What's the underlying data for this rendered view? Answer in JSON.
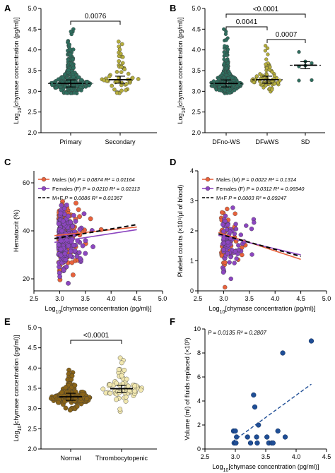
{
  "figure": {
    "panel_letters": [
      "A",
      "B",
      "C",
      "D",
      "E",
      "F"
    ],
    "palette": {
      "teal": "#2e6e5e",
      "olive": "#b5ad3c",
      "orange": "#e8623c",
      "purple": "#8c46c0",
      "brown": "#8a6418",
      "cream": "#f2e8b0",
      "blue": "#1f4e96"
    }
  },
  "chart_data": [
    {
      "panel": "A",
      "type": "scatter",
      "subtype": "dot-strip",
      "ylabel": "Log10[chymase concentration (pg/ml)]",
      "ylim": [
        2.0,
        5.0
      ],
      "yticks": [
        "2.0",
        "2.5",
        "3.0",
        "3.5",
        "4.0",
        "4.5",
        "5.0"
      ],
      "categories": [
        "Primary",
        "Secondary"
      ],
      "group_means": [
        3.19,
        3.28
      ],
      "group_ranges": [
        [
          2.95,
          4.5
        ],
        [
          2.95,
          4.2
        ]
      ],
      "group_counts": [
        260,
        55
      ],
      "group_colors": [
        "#2e6e5e",
        "#b5ad3c"
      ],
      "reference_line": 3.19,
      "brackets": [
        {
          "from": 0,
          "to": 1,
          "label": "0.0076"
        }
      ]
    },
    {
      "panel": "B",
      "type": "scatter",
      "subtype": "dot-strip",
      "ylabel": "Log10[chymase concentration (pg/ml)]",
      "ylim": [
        2.0,
        5.0
      ],
      "yticks": [
        "2.0",
        "2.5",
        "3.0",
        "3.5",
        "4.0",
        "4.5",
        "5.0"
      ],
      "categories": [
        "DFno-WS",
        "DFwWS",
        "SD"
      ],
      "group_means": [
        3.19,
        3.28,
        3.63
      ],
      "group_ranges": [
        [
          2.95,
          4.5
        ],
        [
          2.95,
          4.1
        ],
        [
          3.25,
          3.95
        ]
      ],
      "group_counts": [
        230,
        80,
        7
      ],
      "group_colors": [
        "#2e6e5e",
        "#b5ad3c",
        "#2e6e5e"
      ],
      "sd_points": [
        3.95,
        3.72,
        3.68,
        3.6,
        3.62,
        3.27,
        3.26
      ],
      "brackets": [
        {
          "from": 0,
          "to": 2,
          "label": "<0.0001"
        },
        {
          "from": 0,
          "to": 1,
          "label": "0.0041"
        },
        {
          "from": 1,
          "to": 2,
          "label": "0.0007"
        }
      ]
    },
    {
      "panel": "C",
      "type": "scatter",
      "xlabel": "Log10[chymase concentration (pg/ml)]",
      "ylabel": "Hematocrit (%)",
      "xlim": [
        2.5,
        5.0
      ],
      "ylim": [
        15,
        65
      ],
      "xticks": [
        "2.5",
        "3.0",
        "3.5",
        "4.0",
        "4.5",
        "5.0"
      ],
      "yticks": [
        "20",
        "40",
        "60"
      ],
      "series": [
        {
          "name": "Males (M)",
          "stats": "P = 0.0874 R² = 0.01164",
          "color": "#e8623c",
          "fit": [
            [
              2.9,
              38.0
            ],
            [
              4.5,
              41.6
            ]
          ],
          "line": "solid"
        },
        {
          "name": "Females (F)",
          "stats": "P = 0.0210 R² = 0.02113",
          "color": "#8c46c0",
          "fit": [
            [
              2.9,
              35.2
            ],
            [
              4.5,
              40.5
            ]
          ],
          "line": "solid"
        },
        {
          "name": "M+F",
          "stats": "P = 0.0086 R² = 0.01367",
          "color": "#000000",
          "fit": [
            [
              2.9,
              36.8
            ],
            [
              4.5,
              42.6
            ]
          ],
          "line": "dashed"
        }
      ]
    },
    {
      "panel": "D",
      "type": "scatter",
      "xlabel": "Log10[chymase concentration (pg/ml)]",
      "ylabel": "Platelet counts (×10⁵/μl of blood)",
      "xlim": [
        2.5,
        5.0
      ],
      "ylim": [
        0,
        4
      ],
      "xticks": [
        "2.5",
        "3.0",
        "3.5",
        "4.0",
        "4.5",
        "5.0"
      ],
      "yticks": [
        "0",
        "1",
        "2",
        "3",
        "4"
      ],
      "series": [
        {
          "name": "Males (M)",
          "stats": "P = 0.0022 R² = 0.1314",
          "color": "#e8623c",
          "fit": [
            [
              2.9,
              1.95
            ],
            [
              4.5,
              1.05
            ]
          ],
          "line": "solid"
        },
        {
          "name": "Females (F)",
          "stats": "P = 0.0312 R² = 0.06940",
          "color": "#8c46c0",
          "fit": [
            [
              2.9,
              1.85
            ],
            [
              4.5,
              1.2
            ]
          ],
          "line": "solid"
        },
        {
          "name": "M+F",
          "stats": "P = 0.0003 R² = 0.09247",
          "color": "#000000",
          "fit": [
            [
              2.9,
              1.9
            ],
            [
              4.5,
              1.15
            ]
          ],
          "line": "dashed"
        }
      ]
    },
    {
      "panel": "E",
      "type": "scatter",
      "subtype": "dot-strip",
      "ylabel": "Log10[chymase concentration (pg/ml)]",
      "ylim": [
        2.0,
        5.0
      ],
      "yticks": [
        "2.0",
        "2.5",
        "3.0",
        "3.5",
        "4.0",
        "4.5",
        "5.0"
      ],
      "categories": [
        "Normal",
        "Thrombocytopenic"
      ],
      "group_means": [
        3.29,
        3.49
      ],
      "group_ranges": [
        [
          2.95,
          3.95
        ],
        [
          2.9,
          4.25
        ]
      ],
      "group_counts": [
        140,
        70
      ],
      "group_colors": [
        "#8a6418",
        "#f2e8b0"
      ],
      "brackets": [
        {
          "from": 0,
          "to": 1,
          "label": "<0.0001"
        }
      ]
    },
    {
      "panel": "F",
      "type": "scatter",
      "xlabel": "Log10[chymase concentration (pg/ml)]",
      "ylabel": "Volume (ml) of fluids replaced (×10³)",
      "annotation": "P = 0.0135 R² = 0.2807",
      "xlim": [
        2.5,
        4.5
      ],
      "ylim": [
        0,
        10
      ],
      "xticks": [
        "2.5",
        "3.0",
        "3.5",
        "4.0",
        "4.5"
      ],
      "yticks": [
        "0",
        "2",
        "4",
        "6",
        "8",
        "10"
      ],
      "x": [
        2.97,
        3.0,
        3.02,
        2.98,
        3.01,
        3.2,
        3.25,
        3.3,
        3.32,
        3.35,
        3.36,
        3.38,
        3.52,
        3.55,
        3.6,
        3.62,
        3.7,
        3.78,
        3.82,
        4.25
      ],
      "y": [
        1.5,
        1.5,
        1.0,
        0.5,
        0.5,
        1.0,
        0.5,
        4.5,
        3.5,
        1.0,
        0.5,
        2.0,
        1.0,
        0.5,
        0.5,
        0.5,
        1.5,
        8.0,
        1.0,
        9.0
      ],
      "fit": [
        [
          2.95,
          0.6
        ],
        [
          4.25,
          5.4
        ]
      ]
    }
  ]
}
